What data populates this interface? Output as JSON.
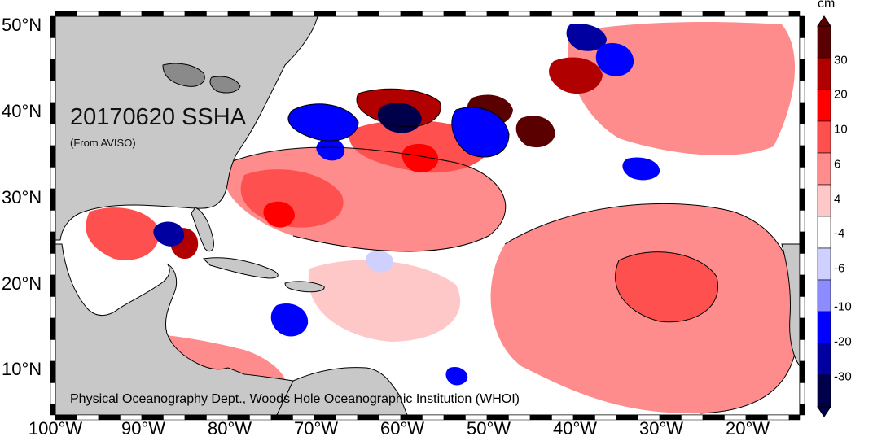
{
  "map": {
    "title": "20170620 SSHA",
    "subtitle": "(From AVISO)",
    "credit": "Physical Oceanography Dept., Woods Hole Oceanographic Institution (WHOI)",
    "lat_labels": [
      "50°N",
      "40°N",
      "30°N",
      "20°N",
      "10°N"
    ],
    "lon_labels": [
      "100°W",
      "90°W",
      "80°W",
      "70°W",
      "60°W",
      "50°W",
      "40°W",
      "30°W",
      "20°W"
    ],
    "land_color": "#c8c8c8",
    "ocean_base_color": "#ffffff"
  },
  "colorbar": {
    "unit": "cm",
    "tick_labels": [
      "30",
      "20",
      "10",
      "6",
      "4",
      "-4",
      "-6",
      "-10",
      "-20",
      "-30"
    ],
    "colors": [
      "#5a0000",
      "#b00000",
      "#ff0000",
      "#ff5050",
      "#ff8c8c",
      "#ffc8c8",
      "#ffffff",
      "#d0d0ff",
      "#8c8cff",
      "#0000ff",
      "#0000a0",
      "#00004a"
    ]
  }
}
